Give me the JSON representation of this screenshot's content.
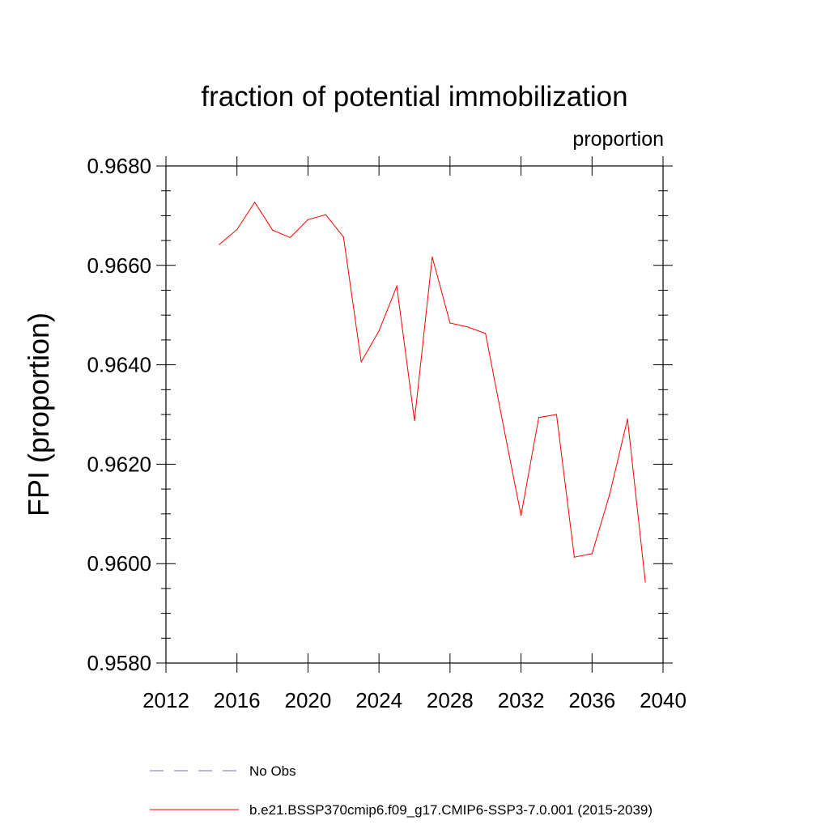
{
  "chart_data": {
    "type": "line",
    "title": "fraction of potential immobilization",
    "units_label": "proportion",
    "ylabel": "FPI  (proportion)",
    "xlabel": "",
    "xlim": [
      2012,
      2040
    ],
    "ylim": [
      0.958,
      0.968
    ],
    "x_ticks": [
      2012,
      2016,
      2020,
      2024,
      2028,
      2032,
      2036,
      2040
    ],
    "x_tick_labels": [
      "2012",
      "2016",
      "2020",
      "2024",
      "2028",
      "2032",
      "2036",
      "2040"
    ],
    "y_ticks": [
      0.958,
      0.96,
      0.962,
      0.964,
      0.966,
      0.968
    ],
    "y_tick_labels": [
      "0.9580",
      "0.9600",
      "0.9620",
      "0.9640",
      "0.9660",
      "0.9680"
    ],
    "grid": false,
    "legend_position": "bottom",
    "series": [
      {
        "name": "b.e21.BSSP370cmip6.f09_g17.CMIP6-SSP3-7.0.001 (2015-2039)",
        "color": "#ff0000",
        "style": "solid",
        "x": [
          2015,
          2016,
          2017,
          2018,
          2019,
          2020,
          2021,
          2022,
          2023,
          2024,
          2025,
          2026,
          2027,
          2028,
          2029,
          2030,
          2031,
          2032,
          2033,
          2034,
          2035,
          2036,
          2037,
          2038,
          2039
        ],
        "values": [
          0.96642,
          0.96672,
          0.96727,
          0.96671,
          0.96656,
          0.96692,
          0.96702,
          0.96657,
          0.96406,
          0.96468,
          0.96558,
          0.96288,
          0.96617,
          0.96484,
          0.96476,
          0.96463,
          0.96279,
          0.96097,
          0.96294,
          0.963,
          0.96013,
          0.9602,
          0.9614,
          0.96291,
          0.95963
        ]
      }
    ],
    "legend": [
      {
        "label": "No Obs",
        "color": "#7b72c7",
        "style": "dashed"
      },
      {
        "label": "b.e21.BSSP370cmip6.f09_g17.CMIP6-SSP3-7.0.001 (2015-2039)",
        "color": "#ff0000",
        "style": "solid"
      }
    ]
  }
}
